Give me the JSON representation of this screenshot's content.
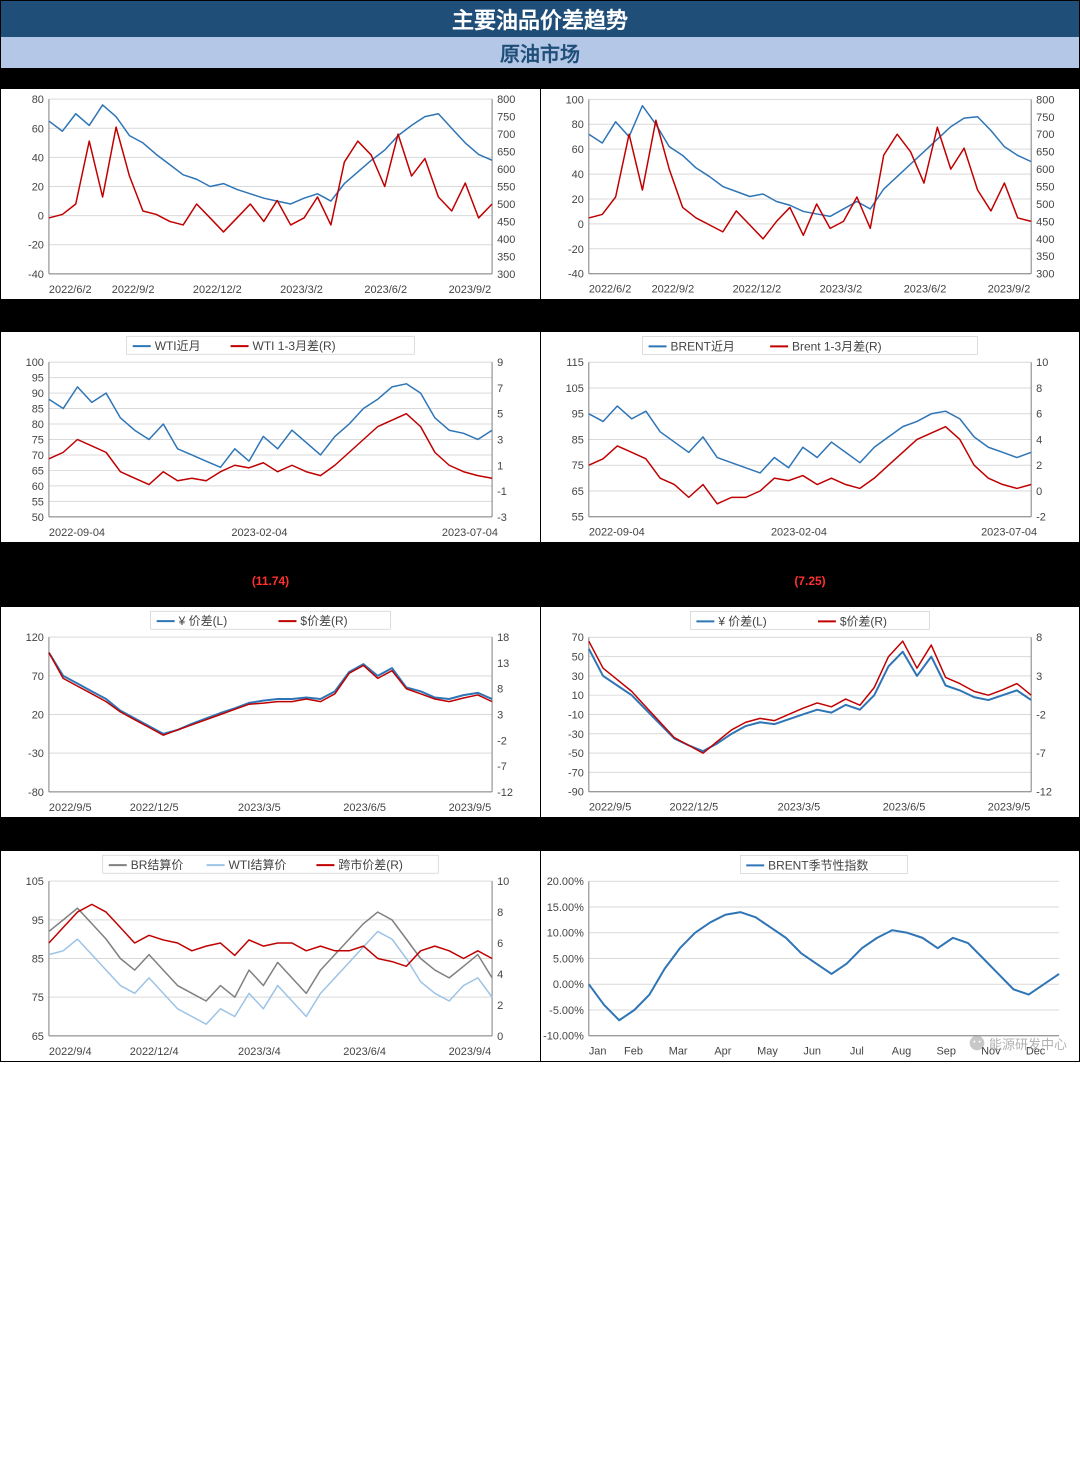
{
  "titleMain": "主要油品价差趋势",
  "titleSub": "原油市场",
  "colors": {
    "blue": "#2e75b6",
    "red": "#c00000",
    "grey": "#808080",
    "lightblue": "#9dc3e6",
    "grid": "#d9d9d9",
    "axis": "#808080",
    "black": "#000000",
    "bgHead": "#000000"
  },
  "charts": [
    {
      "id": "c1",
      "head": "",
      "xLabels": [
        "2022/6/2",
        "2022/9/2",
        "2022/12/2",
        "2023/3/2",
        "2023/6/2",
        "2023/9/2"
      ],
      "yLeft": {
        "min": -40,
        "max": 80,
        "step": 20
      },
      "yRight": {
        "min": 300,
        "max": 800,
        "step": 50
      },
      "series": [
        {
          "name": "",
          "color": "#2e75b6",
          "axis": "L",
          "width": 1.5,
          "data": [
            65,
            58,
            70,
            62,
            76,
            68,
            55,
            50,
            42,
            35,
            28,
            25,
            20,
            22,
            18,
            15,
            12,
            10,
            8,
            12,
            15,
            10,
            22,
            30,
            38,
            45,
            55,
            62,
            68,
            70,
            60,
            50,
            42,
            38
          ]
        },
        {
          "name": "",
          "color": "#c00000",
          "axis": "R",
          "width": 1.5,
          "data": [
            460,
            470,
            500,
            680,
            520,
            720,
            580,
            480,
            470,
            450,
            440,
            500,
            460,
            420,
            460,
            500,
            450,
            510,
            440,
            460,
            520,
            440,
            620,
            680,
            640,
            550,
            700,
            580,
            630,
            520,
            480,
            560,
            460,
            500
          ]
        }
      ]
    },
    {
      "id": "c2",
      "head": "",
      "xLabels": [
        "2022/6/2",
        "2022/9/2",
        "2022/12/2",
        "2023/3/2",
        "2023/6/2",
        "2023/9/2"
      ],
      "yLeft": {
        "min": -40,
        "max": 100,
        "step": 20
      },
      "yRight": {
        "min": 300,
        "max": 800,
        "step": 50
      },
      "series": [
        {
          "name": "",
          "color": "#2e75b6",
          "axis": "L",
          "width": 1.5,
          "data": [
            72,
            65,
            82,
            70,
            95,
            80,
            62,
            55,
            45,
            38,
            30,
            26,
            22,
            24,
            18,
            15,
            10,
            8,
            6,
            12,
            18,
            12,
            28,
            38,
            48,
            58,
            68,
            78,
            85,
            86,
            75,
            62,
            55,
            50
          ]
        },
        {
          "name": "",
          "color": "#c00000",
          "axis": "R",
          "width": 1.5,
          "data": [
            460,
            470,
            520,
            700,
            540,
            740,
            600,
            490,
            460,
            440,
            420,
            480,
            440,
            400,
            450,
            490,
            410,
            500,
            430,
            450,
            520,
            430,
            640,
            700,
            650,
            560,
            720,
            600,
            660,
            540,
            480,
            560,
            460,
            450
          ]
        }
      ]
    },
    {
      "id": "c3",
      "head": "",
      "legend": [
        {
          "name": "WTI近月",
          "color": "#2e75b6"
        },
        {
          "name": "WTI 1-3月差(R)",
          "color": "#c00000"
        }
      ],
      "xLabels": [
        "2022-09-04",
        "2023-02-04",
        "2023-07-04"
      ],
      "yLeft": {
        "min": 50,
        "max": 100,
        "step": 5
      },
      "yRight": {
        "min": -3,
        "max": 9,
        "step": 2
      },
      "series": [
        {
          "name": "WTI近月",
          "color": "#2e75b6",
          "axis": "L",
          "width": 1.5,
          "data": [
            88,
            85,
            92,
            87,
            90,
            82,
            78,
            75,
            80,
            72,
            70,
            68,
            66,
            72,
            68,
            76,
            72,
            78,
            74,
            70,
            76,
            80,
            85,
            88,
            92,
            93,
            90,
            82,
            78,
            77,
            75,
            78
          ]
        },
        {
          "name": "WTI 1-3月差(R)",
          "color": "#c00000",
          "axis": "R",
          "width": 1.5,
          "data": [
            1.5,
            2,
            3,
            2.5,
            2,
            0.5,
            0,
            -0.5,
            0.5,
            -0.2,
            0,
            -0.2,
            0.5,
            1,
            0.8,
            1.2,
            0.5,
            1,
            0.5,
            0.2,
            1,
            2,
            3,
            4,
            4.5,
            5,
            4,
            2,
            1,
            0.5,
            0.2,
            0
          ]
        }
      ]
    },
    {
      "id": "c4",
      "head": "",
      "legend": [
        {
          "name": "BRENT近月",
          "color": "#2e75b6"
        },
        {
          "name": "Brent 1-3月差(R)",
          "color": "#c00000"
        }
      ],
      "xLabels": [
        "2022-09-04",
        "2023-02-04",
        "2023-07-04"
      ],
      "yLeft": {
        "min": 55,
        "max": 115,
        "step": 10
      },
      "yRight": {
        "min": -2,
        "max": 10,
        "step": 2
      },
      "series": [
        {
          "name": "BRENT近月",
          "color": "#2e75b6",
          "axis": "L",
          "width": 1.5,
          "data": [
            95,
            92,
            98,
            93,
            96,
            88,
            84,
            80,
            86,
            78,
            76,
            74,
            72,
            78,
            74,
            82,
            78,
            84,
            80,
            76,
            82,
            86,
            90,
            92,
            95,
            96,
            93,
            86,
            82,
            80,
            78,
            80
          ]
        },
        {
          "name": "Brent 1-3月差(R)",
          "color": "#c00000",
          "axis": "R",
          "width": 1.5,
          "data": [
            2,
            2.5,
            3.5,
            3,
            2.5,
            1,
            0.5,
            -0.5,
            0.5,
            -1,
            -0.5,
            -0.5,
            0,
            1,
            0.8,
            1.2,
            0.5,
            1,
            0.5,
            0.2,
            1,
            2,
            3,
            4,
            4.5,
            5,
            4,
            2,
            1,
            0.5,
            0.2,
            0.5
          ]
        }
      ]
    },
    {
      "id": "c5",
      "head": " (11.74) ",
      "legend": [
        {
          "name": "¥ 价差(L)",
          "color": "#2e75b6"
        },
        {
          "name": "$价差(R)",
          "color": "#c00000"
        }
      ],
      "xLabels": [
        "2022/9/5",
        "2022/12/5",
        "2023/3/5",
        "2023/6/5",
        "2023/9/5"
      ],
      "yLeft": {
        "min": -80,
        "max": 120,
        "step": 50
      },
      "yRight": {
        "min": -12,
        "max": 18,
        "step": 5
      },
      "series": [
        {
          "name": "¥ 价差(L)",
          "color": "#2e75b6",
          "axis": "L",
          "width": 2,
          "data": [
            100,
            70,
            60,
            50,
            40,
            25,
            15,
            5,
            -5,
            0,
            8,
            15,
            22,
            28,
            35,
            38,
            40,
            40,
            42,
            40,
            50,
            75,
            85,
            70,
            80,
            55,
            50,
            42,
            40,
            45,
            48,
            40
          ]
        },
        {
          "name": "$价差(R)",
          "color": "#c00000",
          "axis": "R",
          "width": 1.5,
          "data": [
            15,
            10,
            8.5,
            7,
            5.5,
            3.5,
            2,
            0.5,
            -1,
            0,
            1,
            2,
            3,
            4,
            5,
            5.2,
            5.5,
            5.5,
            6,
            5.5,
            7,
            11,
            12.5,
            10,
            11.5,
            8,
            7,
            6,
            5.5,
            6.2,
            6.8,
            5.5
          ]
        }
      ]
    },
    {
      "id": "c6",
      "head": " (7.25) ",
      "legend": [
        {
          "name": "¥ 价差(L)",
          "color": "#2e75b6"
        },
        {
          "name": "$价差(R)",
          "color": "#c00000"
        }
      ],
      "xLabels": [
        "2022/9/5",
        "2022/12/5",
        "2023/3/5",
        "2023/6/5",
        "2023/9/5"
      ],
      "yLeft": {
        "min": -90,
        "max": 70,
        "step": 20
      },
      "yRight": {
        "min": -12,
        "max": 8,
        "step": 5
      },
      "series": [
        {
          "name": "¥ 价差(L)",
          "color": "#2e75b6",
          "axis": "L",
          "width": 2,
          "data": [
            58,
            30,
            20,
            10,
            -5,
            -20,
            -35,
            -42,
            -48,
            -40,
            -30,
            -22,
            -18,
            -20,
            -15,
            -10,
            -5,
            -8,
            0,
            -5,
            10,
            40,
            55,
            30,
            50,
            20,
            15,
            8,
            5,
            10,
            15,
            5
          ]
        },
        {
          "name": "$价差(R)",
          "color": "#c00000",
          "axis": "R",
          "width": 1.5,
          "data": [
            7.5,
            4,
            2.5,
            1,
            -1,
            -3,
            -5,
            -6,
            -7,
            -5.5,
            -4,
            -3,
            -2.5,
            -2.8,
            -2,
            -1.2,
            -0.5,
            -1,
            0,
            -0.8,
            1.5,
            5.5,
            7.5,
            4,
            7,
            2.8,
            2,
            1,
            0.5,
            1.2,
            2,
            0.5
          ]
        }
      ]
    },
    {
      "id": "c7",
      "head": "",
      "legend": [
        {
          "name": "BR结算价",
          "color": "#808080"
        },
        {
          "name": "WTI结算价",
          "color": "#9dc3e6"
        },
        {
          "name": "跨市价差(R)",
          "color": "#c00000"
        }
      ],
      "xLabels": [
        "2022/9/4",
        "2022/12/4",
        "2023/3/4",
        "2023/6/4",
        "2023/9/4"
      ],
      "yLeft": {
        "min": 65,
        "max": 105,
        "step": 10
      },
      "yRight": {
        "min": 0,
        "max": 10,
        "step": 2
      },
      "series": [
        {
          "name": "BR结算价",
          "color": "#808080",
          "axis": "L",
          "width": 1.5,
          "data": [
            92,
            95,
            98,
            94,
            90,
            85,
            82,
            86,
            82,
            78,
            76,
            74,
            78,
            75,
            82,
            78,
            84,
            80,
            76,
            82,
            86,
            90,
            94,
            97,
            95,
            90,
            85,
            82,
            80,
            83,
            86,
            80
          ]
        },
        {
          "name": "WTI结算价",
          "color": "#9dc3e6",
          "axis": "L",
          "width": 1.5,
          "data": [
            86,
            87,
            90,
            86,
            82,
            78,
            76,
            80,
            76,
            72,
            70,
            68,
            72,
            70,
            76,
            72,
            78,
            74,
            70,
            76,
            80,
            84,
            88,
            92,
            90,
            85,
            79,
            76,
            74,
            78,
            80,
            75
          ]
        },
        {
          "name": "跨市价差(R)",
          "color": "#c00000",
          "axis": "R",
          "width": 1.5,
          "data": [
            6,
            7,
            8,
            8.5,
            8,
            7,
            6,
            6.5,
            6.2,
            6,
            5.5,
            5.8,
            6,
            5.2,
            6.2,
            5.8,
            6,
            6,
            5.5,
            5.8,
            5.5,
            5.5,
            5.8,
            5,
            4.8,
            4.5,
            5.5,
            5.8,
            5.5,
            5,
            5.5,
            5
          ]
        }
      ]
    },
    {
      "id": "c8",
      "head": "",
      "legend": [
        {
          "name": "BRENT季节性指数",
          "color": "#2e75b6"
        }
      ],
      "xLabels": [
        "Jan",
        "Feb",
        "Mar",
        "Apr",
        "May",
        "Jun",
        "Jul",
        "Aug",
        "Sep",
        "Nov",
        "Dec"
      ],
      "yLeft": {
        "min": -10,
        "max": 20,
        "step": 5,
        "suffix": "%",
        "decimals": 2
      },
      "yRight": null,
      "series": [
        {
          "name": "BRENT季节性指数",
          "color": "#2e75b6",
          "axis": "L",
          "width": 2,
          "data": [
            0,
            -4,
            -7,
            -5,
            -2,
            3,
            7,
            10,
            12,
            13.5,
            14,
            13,
            11,
            9,
            6,
            4,
            2,
            4,
            7,
            9,
            10.5,
            10,
            9,
            7,
            9,
            8,
            5,
            2,
            -1,
            -2,
            0,
            2
          ]
        }
      ]
    }
  ],
  "watermark": "能源研发中心"
}
